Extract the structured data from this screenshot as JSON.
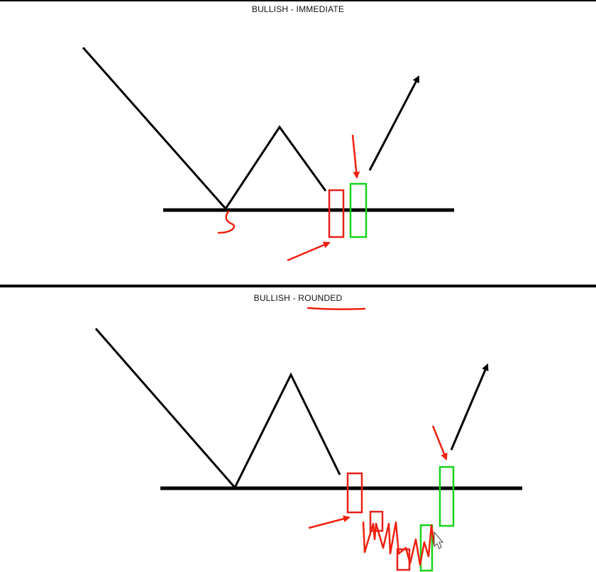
{
  "panels": [
    {
      "title": "BULLISH - IMMEDIATE"
    },
    {
      "title": "BULLISH - ROUNDED"
    }
  ],
  "colors": {
    "line": "#000000",
    "bearish_candle": "#e8201a",
    "bullish_candle": "#17d41d",
    "annotation": "#f0200f"
  }
}
